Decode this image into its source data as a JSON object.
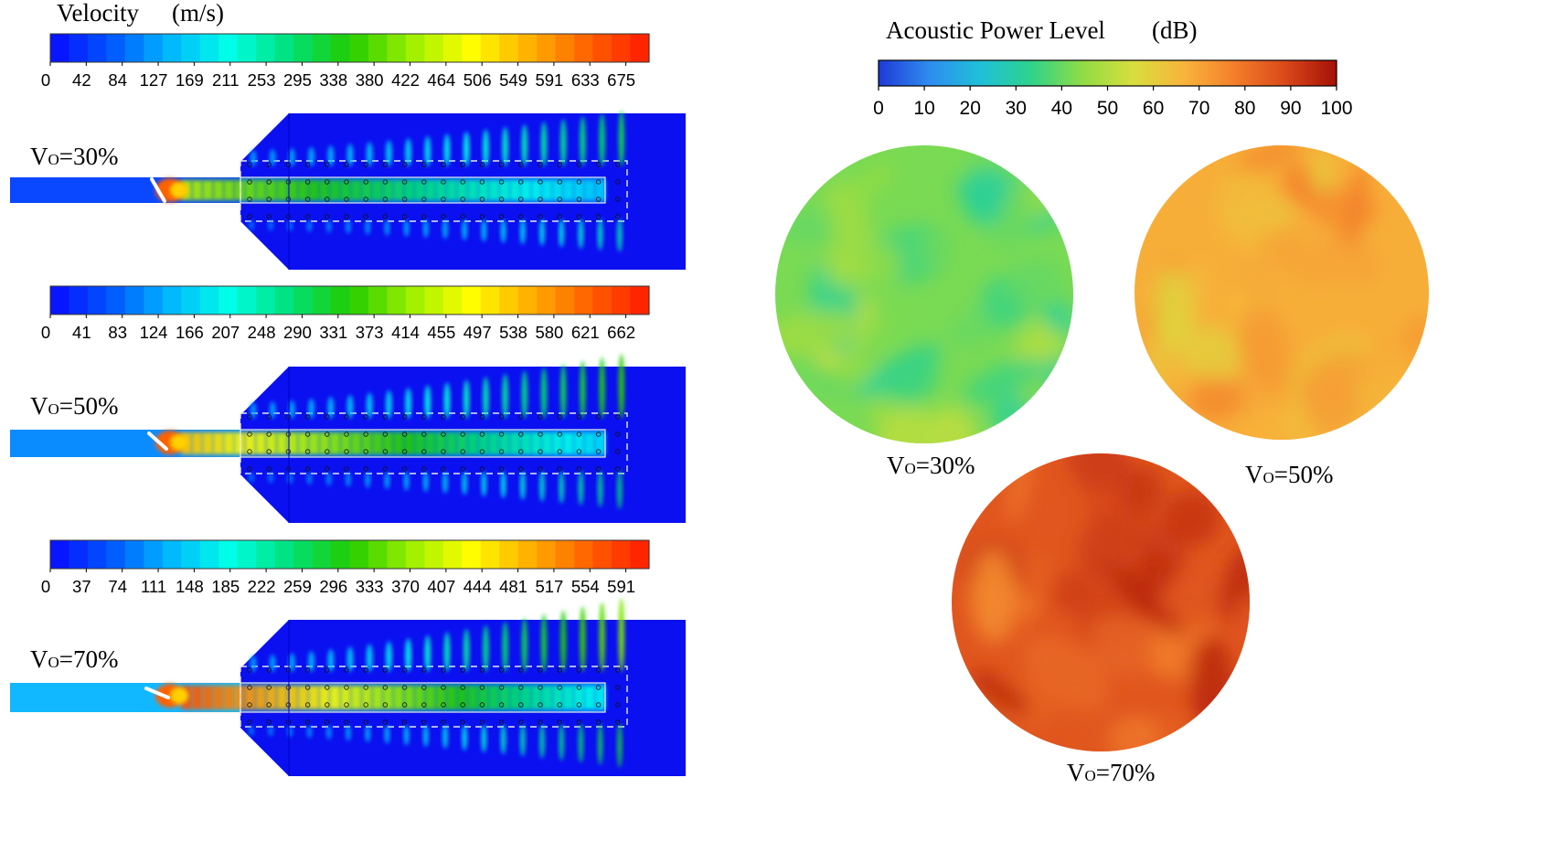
{
  "velocity": {
    "title": "Velocity",
    "unit": "(m/s)",
    "colorbars": [
      {
        "ticks": [
          "0",
          "42",
          "84",
          "127",
          "169",
          "211",
          "253",
          "295",
          "338",
          "380",
          "422",
          "464",
          "506",
          "549",
          "591",
          "633",
          "675"
        ]
      },
      {
        "ticks": [
          "0",
          "41",
          "83",
          "124",
          "166",
          "207",
          "248",
          "290",
          "331",
          "373",
          "414",
          "455",
          "497",
          "538",
          "580",
          "621",
          "662"
        ]
      },
      {
        "ticks": [
          "0",
          "37",
          "74",
          "111",
          "148",
          "185",
          "222",
          "259",
          "296",
          "333",
          "370",
          "407",
          "444",
          "481",
          "517",
          "554",
          "591"
        ]
      }
    ],
    "cases": [
      {
        "label_main": "V",
        "label_sub": "O",
        "label_rest": "=30%",
        "jet_intensity": 0.3
      },
      {
        "label_main": "V",
        "label_sub": "O",
        "label_rest": "=50%",
        "jet_intensity": 0.5
      },
      {
        "label_main": "V",
        "label_sub": "O",
        "label_rest": "=70%",
        "jet_intensity": 0.7
      }
    ]
  },
  "acoustic": {
    "title": "Acoustic  Power Level",
    "unit": "(dB)",
    "ticks": [
      "0",
      "10",
      "20",
      "30",
      "40",
      "50",
      "60",
      "70",
      "80",
      "90",
      "100"
    ],
    "cases": [
      {
        "label_main": "V",
        "label_sub": "O",
        "label_rest": "=30%",
        "mean_level_db": 42
      },
      {
        "label_main": "V",
        "label_sub": "O",
        "label_rest": "=50%",
        "mean_level_db": 68
      },
      {
        "label_main": "V",
        "label_sub": "O",
        "label_rest": "=70%",
        "mean_level_db": 86
      }
    ]
  },
  "colors": {
    "jet": [
      "#0a0aff",
      "#0055ff",
      "#00b8ff",
      "#00ffe6",
      "#00e07a",
      "#22cc00",
      "#99ee00",
      "#ffff00",
      "#ffb000",
      "#ff6000",
      "#ff1a00"
    ],
    "turbo": [
      "#1e3ad6",
      "#2f8cf0",
      "#1fc0d8",
      "#2ed38b",
      "#8fdc45",
      "#d8de3e",
      "#f8b43b",
      "#f37f2b",
      "#d9481a",
      "#a51105"
    ]
  }
}
